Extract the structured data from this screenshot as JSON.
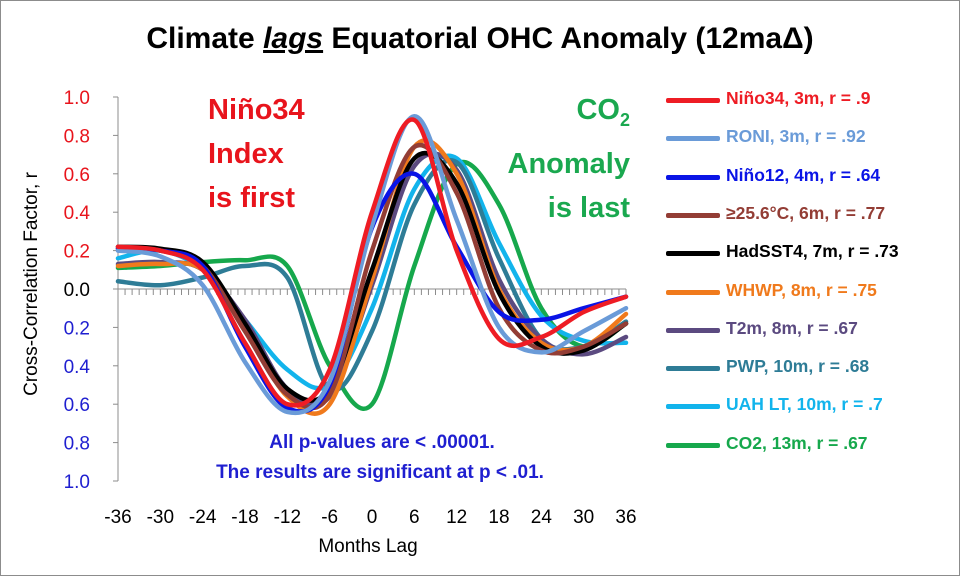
{
  "title": {
    "prefix": "Climate ",
    "lag_word": "lags",
    "suffix": " Equatorial OHC Anomaly (12maΔ)"
  },
  "annotations": {
    "nino": [
      "Niño34",
      "Index",
      "is first"
    ],
    "co2_line1": "CO",
    "co2_sub": "2",
    "co2_line2": "Anomaly",
    "co2_line3": "is last"
  },
  "notes": [
    "All p-values are < .00001.",
    "The results are significant at p < .01."
  ],
  "legend": [
    {
      "text": "Niño34, 3m, r = .9",
      "color": "#ee1c24"
    },
    {
      "text": "RONI, 3m, r = .92",
      "color": "#6a9bd8"
    },
    {
      "text": "Niño12, 4m, r = .64",
      "color": "#0a14e6"
    },
    {
      "text": "≥25.6°C, 6m, r = .77",
      "color": "#933d35"
    },
    {
      "text": "HadSST4, 7m, r = .73",
      "color": "#000000"
    },
    {
      "text": "WHWP, 8m, r = .75",
      "color": "#f07a1c"
    },
    {
      "text": "T2m, 8m, r = .67",
      "color": "#5b4a80"
    },
    {
      "text": "PWP, 10m, r = .68",
      "color": "#2e7c96"
    },
    {
      "text": "UAH LT, 10m, r = .7",
      "color": "#12b4ec"
    },
    {
      "text": "CO2, 13m, r = .67",
      "color": "#16a84c"
    }
  ],
  "chart_data": {
    "type": "line",
    "title": "Climate lags Equatorial OHC Anomaly (12maΔ)",
    "xlabel": "Months Lag",
    "ylabel": "Cross-Correlation Factor, r",
    "xlim": [
      -36,
      36
    ],
    "ylim": [
      -1.0,
      1.0
    ],
    "x_ticks": [
      -36,
      -30,
      -24,
      -18,
      -12,
      -6,
      0,
      6,
      12,
      18,
      24,
      30,
      36
    ],
    "y_ticks": [
      1.0,
      0.8,
      0.6,
      0.4,
      0.2,
      0.0,
      -0.2,
      -0.4,
      -0.6,
      -0.8,
      -1.0
    ],
    "y_tick_labels": [
      "1.0",
      "0.8",
      "0.6",
      "0.4",
      "0.2",
      "0.0",
      "0.2",
      "0.4",
      "0.6",
      "0.8",
      "1.0"
    ],
    "y_tick_colors": [
      "#e8141c",
      "#e8141c",
      "#e8141c",
      "#e8141c",
      "#e8141c",
      "#000000",
      "#1f1fd0",
      "#1f1fd0",
      "#1f1fd0",
      "#1f1fd0",
      "#1f1fd0"
    ],
    "grid": false,
    "legend_position": "right",
    "x": [
      -36,
      -30,
      -24,
      -18,
      -12,
      -6,
      0,
      6,
      12,
      18,
      24,
      30,
      36
    ],
    "series": [
      {
        "name": "Niño34, 3m, r = .9",
        "color": "#ee1c24",
        "values": [
          0.22,
          0.2,
          0.1,
          -0.28,
          -0.6,
          -0.42,
          0.4,
          0.88,
          0.2,
          -0.26,
          -0.25,
          -0.12,
          -0.04
        ]
      },
      {
        "name": "RONI, 3m, r = .92",
        "color": "#6a9bd8",
        "values": [
          0.2,
          0.17,
          0.02,
          -0.38,
          -0.64,
          -0.48,
          0.33,
          0.9,
          0.36,
          -0.2,
          -0.33,
          -0.22,
          -0.1
        ]
      },
      {
        "name": "Niño12, 4m, r = .64",
        "color": "#0a14e6",
        "values": [
          0.21,
          0.2,
          0.12,
          -0.3,
          -0.62,
          -0.5,
          0.32,
          0.6,
          0.22,
          -0.12,
          -0.16,
          -0.1,
          -0.04
        ]
      },
      {
        "name": "≥25.6°C, 6m, r = .77",
        "color": "#933d35",
        "values": [
          0.21,
          0.2,
          0.12,
          -0.22,
          -0.55,
          -0.55,
          0.2,
          0.74,
          0.5,
          -0.1,
          -0.32,
          -0.3,
          -0.18
        ]
      },
      {
        "name": "HadSST4, 7m, r = .73",
        "color": "#000000",
        "values": [
          0.22,
          0.21,
          0.14,
          -0.18,
          -0.52,
          -0.52,
          0.1,
          0.68,
          0.55,
          -0.02,
          -0.3,
          -0.32,
          -0.18
        ]
      },
      {
        "name": "WHWP, 8m, r = .75",
        "color": "#f07a1c",
        "values": [
          0.12,
          0.13,
          0.1,
          -0.2,
          -0.56,
          -0.6,
          0.05,
          0.74,
          0.6,
          0.0,
          -0.28,
          -0.3,
          -0.13
        ]
      },
      {
        "name": "T2m, 8m, r = .67",
        "color": "#5b4a80",
        "values": [
          0.13,
          0.14,
          0.1,
          -0.16,
          -0.52,
          -0.56,
          0.02,
          0.64,
          0.62,
          0.05,
          -0.26,
          -0.34,
          -0.25
        ]
      },
      {
        "name": "PWP, 10m, r = .68",
        "color": "#2e7c96",
        "values": [
          0.04,
          0.02,
          0.06,
          0.12,
          0.06,
          -0.52,
          -0.22,
          0.44,
          0.66,
          0.16,
          -0.26,
          -0.3,
          -0.17
        ]
      },
      {
        "name": "UAH LT, 10m, r = .7",
        "color": "#12b4ec",
        "values": [
          0.16,
          0.2,
          0.1,
          -0.16,
          -0.42,
          -0.5,
          -0.1,
          0.52,
          0.68,
          0.24,
          -0.14,
          -0.27,
          -0.28
        ]
      },
      {
        "name": "CO2, 13m, r = .67",
        "color": "#16a84c",
        "values": [
          0.11,
          0.12,
          0.14,
          0.15,
          0.12,
          -0.4,
          -0.6,
          0.12,
          0.65,
          0.44,
          -0.1,
          -0.3,
          -0.18
        ]
      }
    ]
  }
}
